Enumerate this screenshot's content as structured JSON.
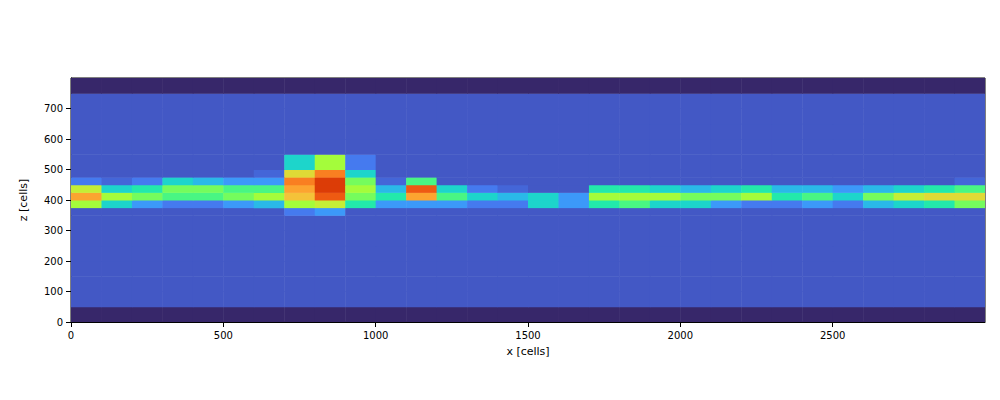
{
  "chart_data": {
    "type": "heatmap",
    "x_label": "x [cells]",
    "y_label": "z [cells]",
    "xlim": [
      0,
      3000
    ],
    "ylim": [
      0,
      800
    ],
    "xticks": [
      0,
      500,
      1000,
      1500,
      2000,
      2500
    ],
    "yticks": [
      0,
      100,
      200,
      300,
      400,
      500,
      600,
      700
    ],
    "grid": false,
    "color_range": [
      0,
      1
    ],
    "x_edges": [
      0,
      100,
      200,
      300,
      400,
      500,
      600,
      700,
      800,
      900,
      1000,
      1100,
      1200,
      1300,
      1400,
      1500,
      1600,
      1700,
      1800,
      1900,
      2000,
      2100,
      2200,
      2300,
      2400,
      2500,
      2600,
      2700,
      2800,
      2900,
      3000
    ],
    "z_edges": [
      0,
      50,
      100,
      150,
      200,
      250,
      300,
      350,
      375,
      400,
      425,
      450,
      475,
      500,
      550,
      600,
      650,
      700,
      750,
      800
    ],
    "cells": [
      [
        0.03,
        0.03,
        0.03,
        0.03,
        0.03,
        0.03,
        0.03,
        0.03,
        0.03,
        0.03,
        0.03,
        0.03,
        0.03,
        0.03,
        0.03,
        0.03,
        0.03,
        0.03,
        0.03,
        0.03,
        0.03,
        0.03,
        0.03,
        0.03,
        0.03,
        0.03,
        0.03,
        0.03,
        0.03,
        0.03
      ],
      [
        0.1,
        0.1,
        0.1,
        0.1,
        0.1,
        0.1,
        0.1,
        0.1,
        0.1,
        0.1,
        0.1,
        0.1,
        0.1,
        0.1,
        0.1,
        0.1,
        0.1,
        0.1,
        0.1,
        0.1,
        0.1,
        0.1,
        0.1,
        0.1,
        0.1,
        0.1,
        0.1,
        0.1,
        0.1,
        0.1
      ],
      [
        0.1,
        0.1,
        0.1,
        0.1,
        0.1,
        0.1,
        0.1,
        0.1,
        0.1,
        0.1,
        0.1,
        0.1,
        0.1,
        0.1,
        0.1,
        0.1,
        0.1,
        0.1,
        0.1,
        0.1,
        0.1,
        0.1,
        0.1,
        0.1,
        0.1,
        0.1,
        0.1,
        0.1,
        0.1,
        0.1
      ],
      [
        0.1,
        0.1,
        0.1,
        0.1,
        0.1,
        0.1,
        0.1,
        0.1,
        0.1,
        0.1,
        0.1,
        0.1,
        0.1,
        0.1,
        0.1,
        0.1,
        0.1,
        0.1,
        0.1,
        0.1,
        0.1,
        0.1,
        0.1,
        0.1,
        0.1,
        0.1,
        0.1,
        0.1,
        0.1,
        0.1
      ],
      [
        0.1,
        0.1,
        0.1,
        0.1,
        0.1,
        0.1,
        0.1,
        0.1,
        0.1,
        0.1,
        0.1,
        0.1,
        0.1,
        0.1,
        0.1,
        0.1,
        0.1,
        0.1,
        0.1,
        0.1,
        0.1,
        0.1,
        0.1,
        0.1,
        0.1,
        0.1,
        0.1,
        0.1,
        0.1,
        0.1
      ],
      [
        0.1,
        0.1,
        0.1,
        0.1,
        0.1,
        0.1,
        0.1,
        0.1,
        0.1,
        0.1,
        0.1,
        0.1,
        0.1,
        0.1,
        0.1,
        0.1,
        0.1,
        0.1,
        0.1,
        0.1,
        0.1,
        0.1,
        0.1,
        0.1,
        0.1,
        0.1,
        0.1,
        0.1,
        0.1,
        0.1
      ],
      [
        0.1,
        0.1,
        0.1,
        0.1,
        0.1,
        0.1,
        0.1,
        0.1,
        0.1,
        0.1,
        0.1,
        0.1,
        0.1,
        0.1,
        0.1,
        0.1,
        0.1,
        0.1,
        0.1,
        0.1,
        0.1,
        0.1,
        0.1,
        0.1,
        0.1,
        0.1,
        0.1,
        0.1,
        0.1,
        0.1
      ],
      [
        0.1,
        0.1,
        0.1,
        0.1,
        0.1,
        0.1,
        0.1,
        0.15,
        0.2,
        0.1,
        0.1,
        0.1,
        0.1,
        0.1,
        0.1,
        0.1,
        0.1,
        0.1,
        0.1,
        0.1,
        0.1,
        0.1,
        0.1,
        0.1,
        0.1,
        0.1,
        0.1,
        0.1,
        0.1,
        0.1
      ],
      [
        0.5,
        0.3,
        0.2,
        0.15,
        0.15,
        0.2,
        0.25,
        0.5,
        0.55,
        0.35,
        0.2,
        0.2,
        0.2,
        0.15,
        0.15,
        0.3,
        0.2,
        0.35,
        0.4,
        0.3,
        0.3,
        0.2,
        0.15,
        0.15,
        0.2,
        0.15,
        0.25,
        0.3,
        0.35,
        0.45
      ],
      [
        0.7,
        0.5,
        0.45,
        0.4,
        0.4,
        0.45,
        0.5,
        0.65,
        0.8,
        0.45,
        0.35,
        0.7,
        0.4,
        0.3,
        0.25,
        0.3,
        0.2,
        0.5,
        0.5,
        0.5,
        0.45,
        0.45,
        0.5,
        0.35,
        0.4,
        0.3,
        0.45,
        0.55,
        0.6,
        0.6
      ],
      [
        0.55,
        0.3,
        0.35,
        0.45,
        0.45,
        0.4,
        0.4,
        0.7,
        0.85,
        0.5,
        0.25,
        0.8,
        0.3,
        0.15,
        0.12,
        0.1,
        0.1,
        0.35,
        0.35,
        0.3,
        0.25,
        0.3,
        0.35,
        0.25,
        0.25,
        0.2,
        0.25,
        0.3,
        0.35,
        0.4
      ],
      [
        0.15,
        0.12,
        0.15,
        0.3,
        0.25,
        0.2,
        0.2,
        0.75,
        0.85,
        0.45,
        0.12,
        0.4,
        0.1,
        0.1,
        0.1,
        0.1,
        0.1,
        0.1,
        0.1,
        0.1,
        0.1,
        0.1,
        0.1,
        0.1,
        0.1,
        0.1,
        0.1,
        0.1,
        0.1,
        0.12
      ],
      [
        0.1,
        0.1,
        0.1,
        0.1,
        0.1,
        0.1,
        0.12,
        0.6,
        0.75,
        0.3,
        0.1,
        0.1,
        0.1,
        0.1,
        0.1,
        0.1,
        0.1,
        0.1,
        0.1,
        0.1,
        0.1,
        0.1,
        0.1,
        0.1,
        0.1,
        0.1,
        0.1,
        0.1,
        0.1,
        0.1
      ],
      [
        0.1,
        0.1,
        0.1,
        0.1,
        0.1,
        0.1,
        0.1,
        0.3,
        0.5,
        0.15,
        0.1,
        0.1,
        0.1,
        0.1,
        0.1,
        0.1,
        0.1,
        0.1,
        0.1,
        0.1,
        0.1,
        0.1,
        0.1,
        0.1,
        0.1,
        0.1,
        0.1,
        0.1,
        0.1,
        0.1
      ],
      [
        0.1,
        0.1,
        0.1,
        0.1,
        0.1,
        0.1,
        0.1,
        0.1,
        0.1,
        0.1,
        0.1,
        0.1,
        0.1,
        0.1,
        0.1,
        0.1,
        0.1,
        0.1,
        0.1,
        0.1,
        0.1,
        0.1,
        0.1,
        0.1,
        0.1,
        0.1,
        0.1,
        0.1,
        0.1,
        0.1
      ],
      [
        0.1,
        0.1,
        0.1,
        0.1,
        0.1,
        0.1,
        0.1,
        0.1,
        0.1,
        0.1,
        0.1,
        0.1,
        0.1,
        0.1,
        0.1,
        0.1,
        0.1,
        0.1,
        0.1,
        0.1,
        0.1,
        0.1,
        0.1,
        0.1,
        0.1,
        0.1,
        0.1,
        0.1,
        0.1,
        0.1
      ],
      [
        0.1,
        0.1,
        0.1,
        0.1,
        0.1,
        0.1,
        0.1,
        0.1,
        0.1,
        0.1,
        0.1,
        0.1,
        0.1,
        0.1,
        0.1,
        0.1,
        0.1,
        0.1,
        0.1,
        0.1,
        0.1,
        0.1,
        0.1,
        0.1,
        0.1,
        0.1,
        0.1,
        0.1,
        0.1,
        0.1
      ],
      [
        0.1,
        0.1,
        0.1,
        0.1,
        0.1,
        0.1,
        0.1,
        0.1,
        0.1,
        0.1,
        0.1,
        0.1,
        0.1,
        0.1,
        0.1,
        0.1,
        0.1,
        0.1,
        0.1,
        0.1,
        0.1,
        0.1,
        0.1,
        0.1,
        0.1,
        0.1,
        0.1,
        0.1,
        0.1,
        0.1
      ],
      [
        0.03,
        0.03,
        0.03,
        0.03,
        0.03,
        0.03,
        0.03,
        0.03,
        0.03,
        0.03,
        0.03,
        0.03,
        0.03,
        0.03,
        0.03,
        0.03,
        0.03,
        0.03,
        0.03,
        0.03,
        0.03,
        0.03,
        0.03,
        0.03,
        0.03,
        0.03,
        0.03,
        0.03,
        0.03,
        0.03
      ]
    ]
  }
}
